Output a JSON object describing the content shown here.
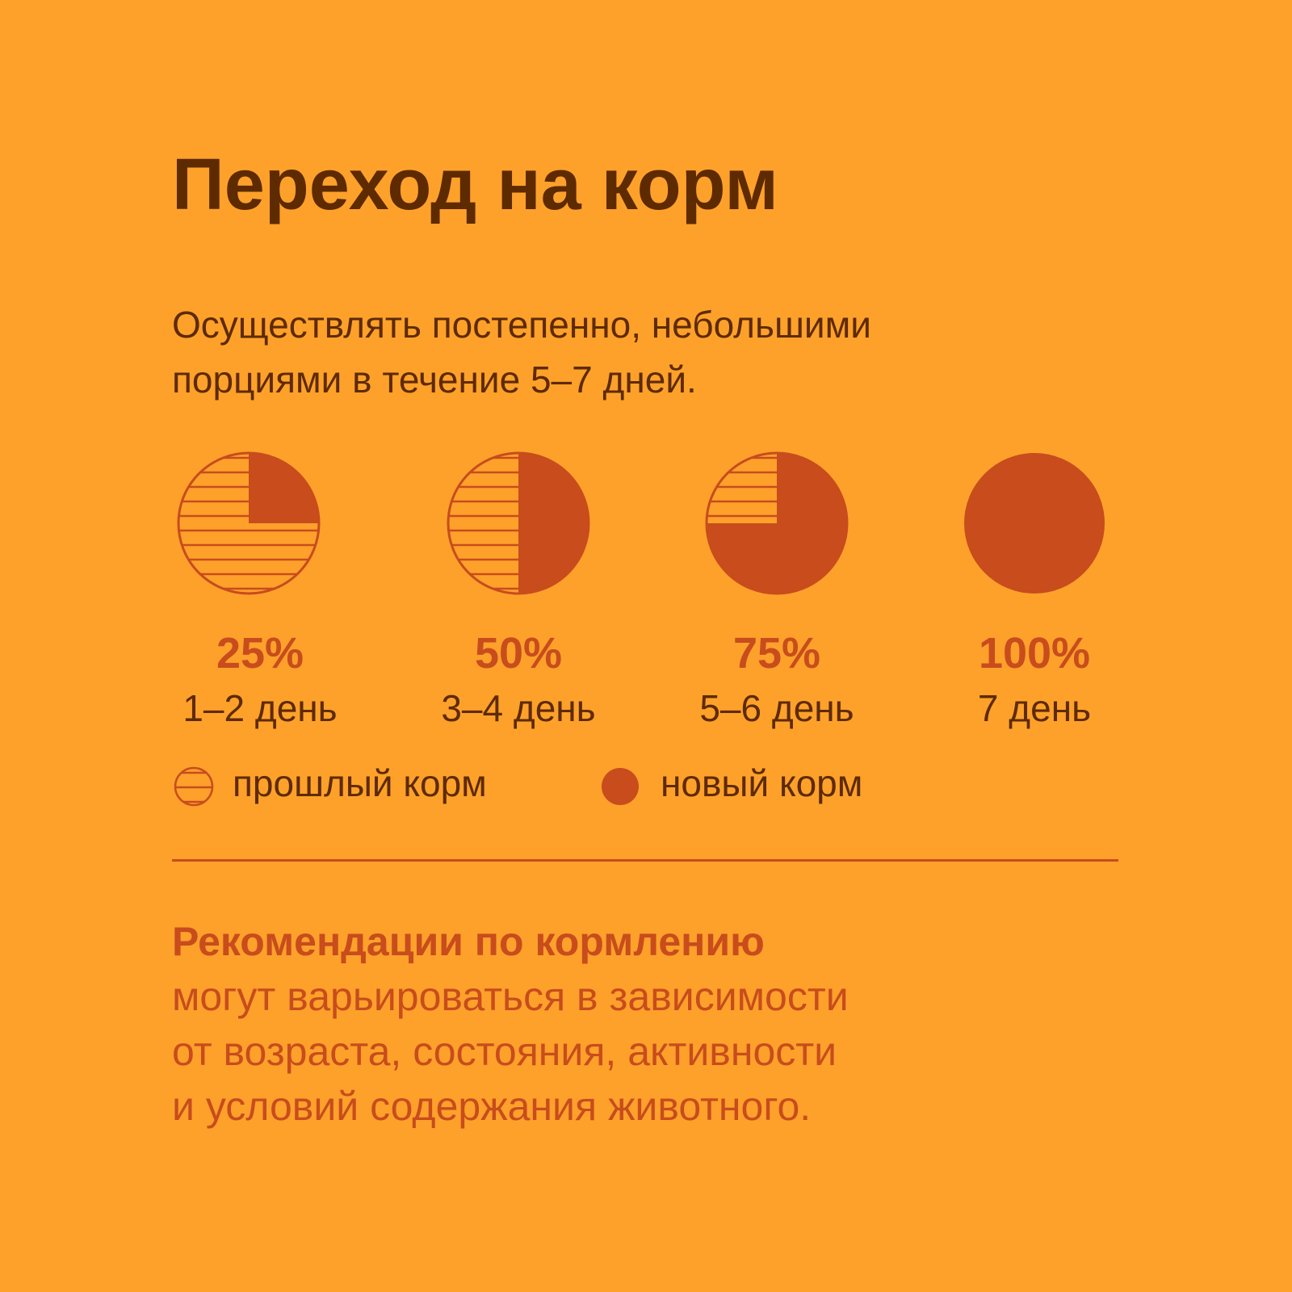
{
  "title": "Переход на корм",
  "intro": {
    "line1": "Осуществлять постепенно, небольшими",
    "line2": "порциями в течение 5–7 дней."
  },
  "colors": {
    "background": "#FDA12B",
    "dark_text": "#5E2A00",
    "accent": "#C84C1C"
  },
  "steps": [
    {
      "percent": "25%",
      "days": "1–2 день",
      "new_share": 0.25
    },
    {
      "percent": "50%",
      "days": "3–4 день",
      "new_share": 0.5
    },
    {
      "percent": "75%",
      "days": "5–6 день",
      "new_share": 0.75
    },
    {
      "percent": "100%",
      "days": "7 день",
      "new_share": 1.0
    }
  ],
  "legend": {
    "old_food": "прошлый корм",
    "new_food": "новый корм"
  },
  "recommendation": {
    "title": "Рекомендации по кормлению",
    "line1": "могут варьироваться в зависимости",
    "line2": "от возраста, состояния, активности",
    "line3": "и условий содержания животного."
  }
}
